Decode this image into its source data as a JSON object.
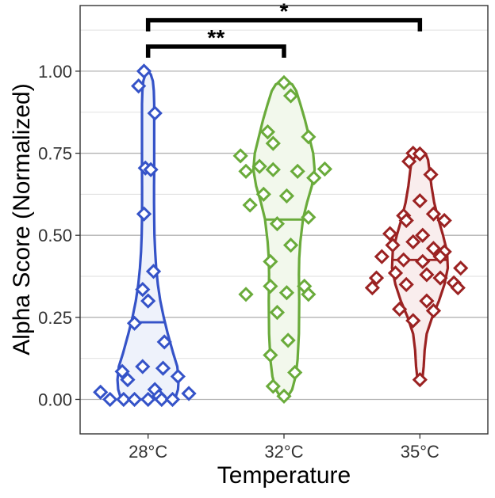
{
  "chart_data": {
    "type": "violin",
    "title": "",
    "xlabel": "Temperature",
    "ylabel": "Alpha Score (Normalized)",
    "ylim": [
      -0.105,
      1.2
    ],
    "y_ticks": [
      0.0,
      0.25,
      0.5,
      0.75,
      1.0
    ],
    "y_tick_labels": [
      "0.00",
      "0.25",
      "0.50",
      "0.75",
      "1.00"
    ],
    "grid": true,
    "legend": "none",
    "categories": [
      "28°C",
      "32°C",
      "35°C"
    ],
    "series": [
      {
        "category": "28°C",
        "color": "#3553c8",
        "fill": "#eef2fb",
        "median": 0.235,
        "density": [
          [
            0.0,
            0.19
          ],
          [
            0.01,
            0.205
          ],
          [
            0.03,
            0.22
          ],
          [
            0.06,
            0.225
          ],
          [
            0.1,
            0.215
          ],
          [
            0.14,
            0.185
          ],
          [
            0.2,
            0.145
          ],
          [
            0.25,
            0.115
          ],
          [
            0.3,
            0.09
          ],
          [
            0.35,
            0.072
          ],
          [
            0.4,
            0.06
          ],
          [
            0.45,
            0.052
          ],
          [
            0.5,
            0.047
          ],
          [
            0.55,
            0.045
          ],
          [
            0.6,
            0.044
          ],
          [
            0.65,
            0.044
          ],
          [
            0.7,
            0.045
          ],
          [
            0.75,
            0.045
          ],
          [
            0.8,
            0.045
          ],
          [
            0.85,
            0.045
          ],
          [
            0.9,
            0.045
          ],
          [
            0.94,
            0.042
          ],
          [
            0.97,
            0.035
          ],
          [
            0.99,
            0.02
          ],
          [
            1.0,
            0.0
          ]
        ],
        "points": [
          {
            "dx": -0.03,
            "y": 1.0
          },
          {
            "dx": -0.07,
            "y": 0.955
          },
          {
            "dx": 0.05,
            "y": 0.872
          },
          {
            "dx": -0.02,
            "y": 0.705
          },
          {
            "dx": 0.02,
            "y": 0.7
          },
          {
            "dx": -0.03,
            "y": 0.565
          },
          {
            "dx": 0.04,
            "y": 0.39
          },
          {
            "dx": -0.04,
            "y": 0.335
          },
          {
            "dx": 0.0,
            "y": 0.3
          },
          {
            "dx": -0.1,
            "y": 0.232
          },
          {
            "dx": 0.12,
            "y": 0.175
          },
          {
            "dx": -0.04,
            "y": 0.1
          },
          {
            "dx": 0.11,
            "y": 0.095
          },
          {
            "dx": -0.19,
            "y": 0.085
          },
          {
            "dx": 0.22,
            "y": 0.07
          },
          {
            "dx": -0.15,
            "y": 0.06
          },
          {
            "dx": 0.05,
            "y": 0.03
          },
          {
            "dx": -0.35,
            "y": 0.022
          },
          {
            "dx": 0.3,
            "y": 0.018
          },
          {
            "dx": 0.08,
            "y": 0.01
          },
          {
            "dx": -0.28,
            "y": 0.0
          },
          {
            "dx": -0.18,
            "y": 0.0
          },
          {
            "dx": -0.1,
            "y": 0.0
          },
          {
            "dx": 0.0,
            "y": 0.0
          },
          {
            "dx": 0.1,
            "y": 0.0
          },
          {
            "dx": 0.18,
            "y": 0.0
          }
        ]
      },
      {
        "category": "32°C",
        "color": "#6aab3b",
        "fill": "#f2f8ec",
        "median": 0.548,
        "density": [
          [
            0.0,
            0.0
          ],
          [
            0.01,
            0.03
          ],
          [
            0.03,
            0.06
          ],
          [
            0.07,
            0.085
          ],
          [
            0.12,
            0.1
          ],
          [
            0.2,
            0.11
          ],
          [
            0.3,
            0.112
          ],
          [
            0.38,
            0.11
          ],
          [
            0.43,
            0.112
          ],
          [
            0.48,
            0.12
          ],
          [
            0.55,
            0.14
          ],
          [
            0.6,
            0.17
          ],
          [
            0.65,
            0.205
          ],
          [
            0.7,
            0.225
          ],
          [
            0.75,
            0.215
          ],
          [
            0.8,
            0.185
          ],
          [
            0.85,
            0.155
          ],
          [
            0.9,
            0.12
          ],
          [
            0.94,
            0.09
          ],
          [
            0.96,
            0.06
          ],
          [
            0.97,
            0.0
          ]
        ],
        "points": [
          {
            "dx": 0.0,
            "y": 0.965
          },
          {
            "dx": 0.05,
            "y": 0.925
          },
          {
            "dx": -0.12,
            "y": 0.815
          },
          {
            "dx": 0.18,
            "y": 0.8
          },
          {
            "dx": -0.08,
            "y": 0.78
          },
          {
            "dx": -0.32,
            "y": 0.742
          },
          {
            "dx": -0.18,
            "y": 0.71
          },
          {
            "dx": -0.08,
            "y": 0.7
          },
          {
            "dx": 0.1,
            "y": 0.695
          },
          {
            "dx": 0.3,
            "y": 0.702
          },
          {
            "dx": 0.22,
            "y": 0.675
          },
          {
            "dx": -0.28,
            "y": 0.695
          },
          {
            "dx": -0.15,
            "y": 0.625
          },
          {
            "dx": 0.02,
            "y": 0.62
          },
          {
            "dx": -0.25,
            "y": 0.592
          },
          {
            "dx": 0.18,
            "y": 0.555
          },
          {
            "dx": -0.05,
            "y": 0.535
          },
          {
            "dx": 0.05,
            "y": 0.47
          },
          {
            "dx": -0.1,
            "y": 0.42
          },
          {
            "dx": -0.1,
            "y": 0.345
          },
          {
            "dx": 0.15,
            "y": 0.345
          },
          {
            "dx": 0.02,
            "y": 0.325
          },
          {
            "dx": -0.28,
            "y": 0.32
          },
          {
            "dx": 0.18,
            "y": 0.32
          },
          {
            "dx": -0.05,
            "y": 0.265
          },
          {
            "dx": 0.03,
            "y": 0.18
          },
          {
            "dx": -0.1,
            "y": 0.135
          },
          {
            "dx": 0.08,
            "y": 0.082
          },
          {
            "dx": -0.08,
            "y": 0.04
          },
          {
            "dx": 0.0,
            "y": 0.01
          }
        ]
      },
      {
        "category": "35°C",
        "color": "#9b2222",
        "fill": "#f9eded",
        "median": 0.425,
        "density": [
          [
            0.06,
            0.0
          ],
          [
            0.07,
            0.02
          ],
          [
            0.1,
            0.028
          ],
          [
            0.15,
            0.035
          ],
          [
            0.2,
            0.05
          ],
          [
            0.25,
            0.09
          ],
          [
            0.3,
            0.14
          ],
          [
            0.35,
            0.18
          ],
          [
            0.4,
            0.205
          ],
          [
            0.45,
            0.2
          ],
          [
            0.5,
            0.17
          ],
          [
            0.55,
            0.135
          ],
          [
            0.6,
            0.105
          ],
          [
            0.65,
            0.085
          ],
          [
            0.7,
            0.07
          ],
          [
            0.73,
            0.06
          ],
          [
            0.75,
            0.04
          ],
          [
            0.755,
            0.0
          ]
        ],
        "points": [
          {
            "dx": -0.05,
            "y": 0.75
          },
          {
            "dx": 0.0,
            "y": 0.748
          },
          {
            "dx": -0.08,
            "y": 0.725
          },
          {
            "dx": 0.08,
            "y": 0.685
          },
          {
            "dx": 0.0,
            "y": 0.605
          },
          {
            "dx": -0.12,
            "y": 0.56
          },
          {
            "dx": 0.1,
            "y": 0.565
          },
          {
            "dx": -0.1,
            "y": 0.545
          },
          {
            "dx": 0.18,
            "y": 0.545
          },
          {
            "dx": -0.22,
            "y": 0.505
          },
          {
            "dx": 0.02,
            "y": 0.5
          },
          {
            "dx": -0.05,
            "y": 0.48
          },
          {
            "dx": -0.2,
            "y": 0.47
          },
          {
            "dx": 0.1,
            "y": 0.46
          },
          {
            "dx": 0.18,
            "y": 0.45
          },
          {
            "dx": -0.28,
            "y": 0.435
          },
          {
            "dx": 0.15,
            "y": 0.435
          },
          {
            "dx": -0.12,
            "y": 0.425
          },
          {
            "dx": 0.02,
            "y": 0.42
          },
          {
            "dx": -0.18,
            "y": 0.385
          },
          {
            "dx": 0.05,
            "y": 0.38
          },
          {
            "dx": 0.3,
            "y": 0.4
          },
          {
            "dx": -0.32,
            "y": 0.37
          },
          {
            "dx": 0.15,
            "y": 0.37
          },
          {
            "dx": -0.1,
            "y": 0.35
          },
          {
            "dx": 0.25,
            "y": 0.355
          },
          {
            "dx": -0.35,
            "y": 0.34
          },
          {
            "dx": 0.28,
            "y": 0.34
          },
          {
            "dx": 0.05,
            "y": 0.3
          },
          {
            "dx": -0.15,
            "y": 0.275
          },
          {
            "dx": 0.1,
            "y": 0.27
          },
          {
            "dx": -0.05,
            "y": 0.24
          },
          {
            "dx": 0.0,
            "y": 0.06
          }
        ]
      }
    ],
    "significance": [
      {
        "from": "28°C",
        "to": "32°C",
        "label": "**"
      },
      {
        "from": "28°C",
        "to": "35°C",
        "label": "*"
      }
    ]
  }
}
